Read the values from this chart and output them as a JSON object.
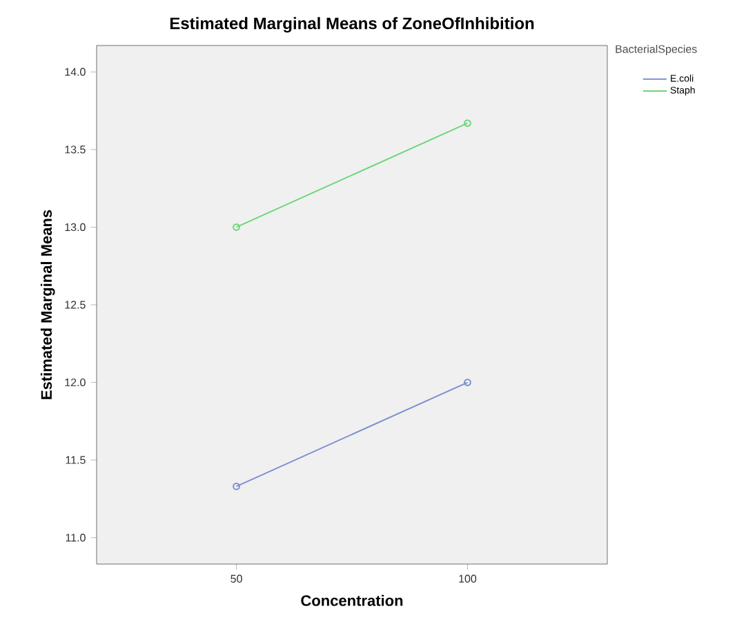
{
  "chart_data": {
    "type": "line",
    "title": "Estimated Marginal Means of ZoneOfInhibition",
    "xlabel": "Concentration",
    "ylabel": "Estimated Marginal Means",
    "legend_title": "BacterialSpecies",
    "categories": [
      "50",
      "100"
    ],
    "series": [
      {
        "name": "E.coli",
        "color": "#7b8fd0",
        "values": [
          11.33,
          12.0
        ]
      },
      {
        "name": "Staph",
        "color": "#6cd67a",
        "values": [
          13.0,
          13.67
        ]
      }
    ],
    "ylim": [
      10.83,
      14.17
    ],
    "yticks": [
      {
        "value": 11,
        "label": "11.0"
      },
      {
        "value": 11.5,
        "label": "11.5"
      },
      {
        "value": 12,
        "label": "12.0"
      },
      {
        "value": 12.5,
        "label": "12.5"
      },
      {
        "value": 13,
        "label": "13.0"
      },
      {
        "value": 13.5,
        "label": "13.5"
      },
      {
        "value": 14,
        "label": "14.0"
      }
    ],
    "legend": "top right",
    "marker": "circle",
    "line_style": "solid",
    "grid": false
  }
}
